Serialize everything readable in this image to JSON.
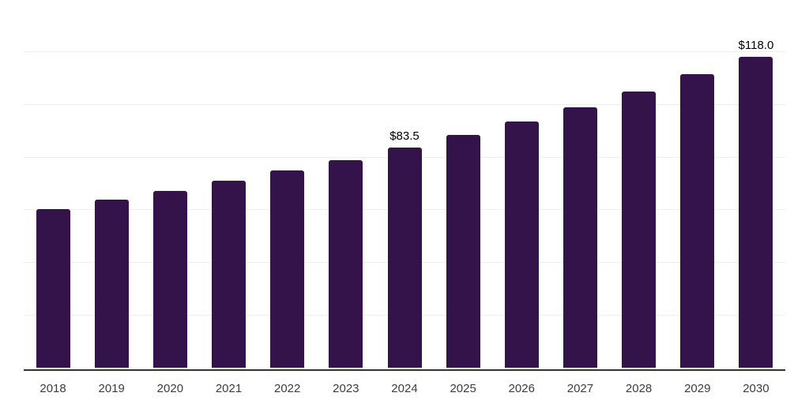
{
  "chart_data": {
    "type": "bar",
    "title": "",
    "xlabel": "",
    "ylabel": "",
    "categories": [
      "2018",
      "2019",
      "2020",
      "2021",
      "2022",
      "2023",
      "2024",
      "2025",
      "2026",
      "2027",
      "2028",
      "2029",
      "2030"
    ],
    "values": [
      60.2,
      63.6,
      67.1,
      70.8,
      74.7,
      78.8,
      83.5,
      88.3,
      93.3,
      98.7,
      104.6,
      111.2,
      118.0
    ],
    "data_labels": [
      "",
      "",
      "",
      "",
      "",
      "",
      "$83.5",
      "",
      "",
      "",
      "",
      "",
      "$118.0"
    ],
    "ylim": [
      0,
      140
    ],
    "grid_step": 20,
    "grid": true,
    "legend": false,
    "colors": {
      "bar": "#331349",
      "gridline": "#efefef",
      "axis": "#333333",
      "data_label": "#000000",
      "tick_label": "#3d3d3d"
    }
  }
}
